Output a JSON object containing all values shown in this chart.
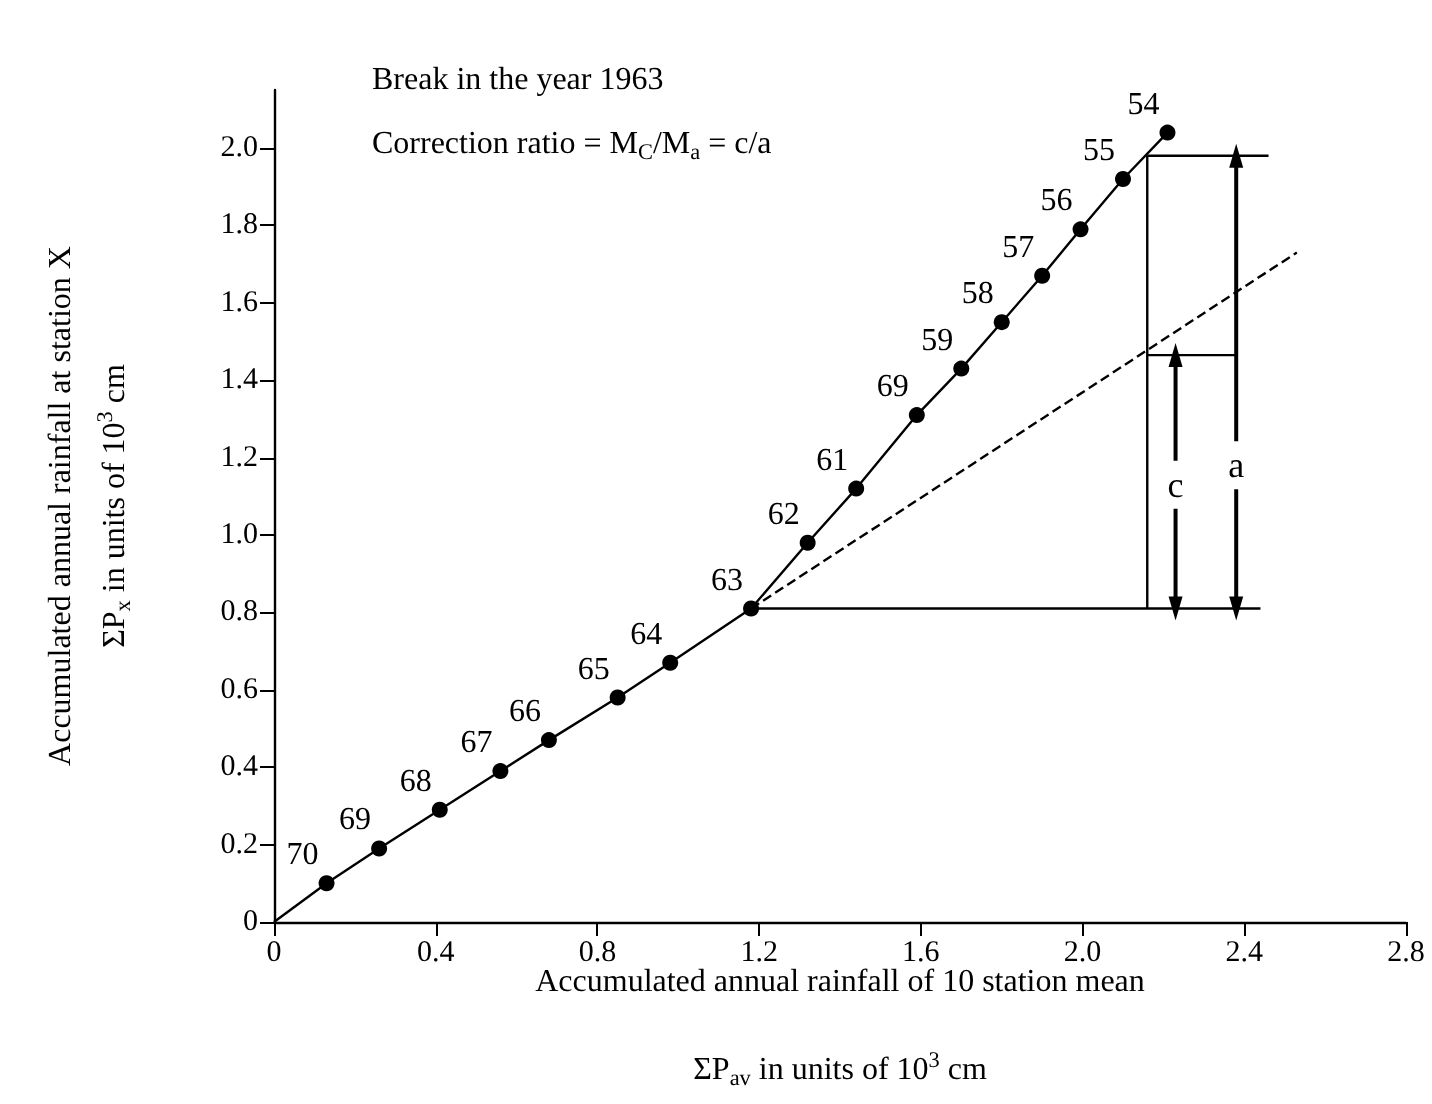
{
  "chart_data": {
    "type": "line",
    "xlabel": "Accumulated annual rainfall of 10 station mean\nΣP$_{av}$ in units of 10$^{3}$ cm",
    "ylabel": "Accumulated annual rainfall at station X\nΣP$_{x}$ in units of 10$^{3}$ cm",
    "annotations": [
      "Break in the year 1963",
      "Correction ratio = M$_{C}$/M$_{a}$ = c/a",
      {
        "text": "70",
        "x": 0.13,
        "y": 0.1
      },
      {
        "text": "69",
        "x": 0.26,
        "y": 0.19
      },
      {
        "text": "68",
        "x": 0.41,
        "y": 0.29
      },
      {
        "text": "67",
        "x": 0.56,
        "y": 0.39
      },
      {
        "text": "66",
        "x": 0.68,
        "y": 0.47
      },
      {
        "text": "65",
        "x": 0.85,
        "y": 0.58
      },
      {
        "text": "64",
        "x": 0.98,
        "y": 0.67
      },
      {
        "text": "63",
        "x": 1.18,
        "y": 0.81
      },
      {
        "text": "62",
        "x": 1.32,
        "y": 0.98
      },
      {
        "text": "61",
        "x": 1.44,
        "y": 1.12
      },
      {
        "text": "69",
        "x": 1.59,
        "y": 1.31
      },
      {
        "text": "59",
        "x": 1.7,
        "y": 1.43
      },
      {
        "text": "58",
        "x": 1.8,
        "y": 1.55
      },
      {
        "text": "57",
        "x": 1.9,
        "y": 1.67
      },
      {
        "text": "56",
        "x": 1.995,
        "y": 1.79
      },
      {
        "text": "55",
        "x": 2.1,
        "y": 1.92
      },
      {
        "text": "54",
        "x": 2.21,
        "y": 2.04
      },
      {
        "text": "c",
        "x": 2.23,
        "y": 1.13
      },
      {
        "text": "a",
        "x": 2.38,
        "y": 1.18
      }
    ],
    "xlim": [
      0,
      2.8
    ],
    "xticks": [
      0,
      0.4,
      0.8,
      1.2,
      1.6,
      {
        "value": 2,
        "label": "2.0"
      },
      2.4,
      2.8
    ],
    "ylim": [
      0,
      2.15
    ],
    "yticks": [
      0,
      0.2,
      0.4,
      0.6,
      0.8,
      {
        "value": 1,
        "label": "1.0"
      },
      1.2,
      1.4,
      1.6,
      1.8,
      {
        "value": 2,
        "label": "2.0"
      }
    ],
    "series": [
      {
        "color": "#000000",
        "marker": "circle",
        "x": [
          0.13,
          0.26,
          0.41,
          0.56,
          0.68,
          0.85,
          0.98,
          1.18,
          1.32,
          1.44,
          1.59,
          1.7,
          1.8,
          1.9,
          1.995,
          2.1,
          2.21
        ],
        "values": [
          0.1,
          0.19,
          0.29,
          0.39,
          0.47,
          0.58,
          0.67,
          0.81,
          0.98,
          1.12,
          1.31,
          1.43,
          1.55,
          1.67,
          1.79,
          1.92,
          2.04
        ]
      },
      {
        "color": "#000000",
        "marker": "none",
        "x": [
          0,
          0.13
        ],
        "values": [
          0,
          0.1
        ]
      },
      {
        "color": "#000000",
        "marker": "none",
        "line_style": "dashed",
        "x": [
          1.18,
          2.53
        ],
        "values": [
          0.81,
          1.73
        ]
      },
      {
        "color": "#000000",
        "marker": "none",
        "x": [
          1.18,
          2.44
        ],
        "values": [
          0.81,
          0.81
        ]
      },
      {
        "color": "#000000",
        "marker": "none",
        "x": [
          2.16,
          2.16
        ],
        "values": [
          0.81,
          1.98
        ]
      },
      {
        "color": "#000000",
        "marker": "none",
        "x": [
          2.16,
          2.46
        ],
        "values": [
          1.98,
          1.98
        ]
      },
      {
        "color": "#000000",
        "marker": "none",
        "x": [
          2.16,
          2.38
        ],
        "values": [
          1.465,
          1.465
        ]
      },
      {
        "color": "#000000",
        "marker": "triangle",
        "x": [
          2.23,
          2.23
        ],
        "values": [
          0.81,
          1.465
        ]
      },
      {
        "color": "#000000",
        "marker": "triangle",
        "x": [
          2.38,
          2.38
        ],
        "values": [
          0.81,
          1.98
        ]
      }
    ]
  }
}
